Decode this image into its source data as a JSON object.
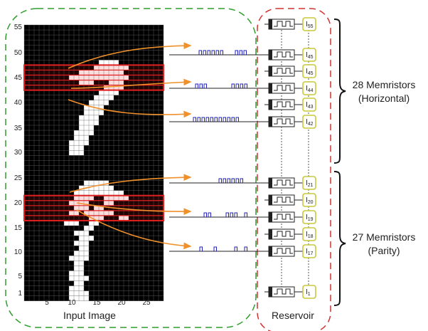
{
  "input_panel": {
    "caption": "Input Image",
    "grid_columns": 28,
    "grid_rows": 55,
    "y_ticks": [
      "55",
      "50",
      "45",
      "40",
      "35",
      "30",
      "25",
      "20",
      "15",
      "10",
      "5",
      "1"
    ],
    "x_ticks": [
      "5",
      "10",
      "15",
      "20",
      "25"
    ],
    "panel_border_color": "#2e9e2e"
  },
  "reservoir": {
    "caption": "Reservoir",
    "border_color": "#d43030",
    "current_box_color": "#c8c83c",
    "top_devices": [
      {
        "label": "I",
        "sub": "55"
      },
      {
        "label": "I",
        "sub": "45"
      },
      {
        "label": "I",
        "sub": "45"
      },
      {
        "label": "I",
        "sub": "44"
      },
      {
        "label": "I",
        "sub": "43"
      },
      {
        "label": "I",
        "sub": "42"
      }
    ],
    "bottom_devices": [
      {
        "label": "I",
        "sub": "21"
      },
      {
        "label": "I",
        "sub": "20"
      },
      {
        "label": "I",
        "sub": "19"
      },
      {
        "label": "I",
        "sub": "18"
      },
      {
        "label": "I",
        "sub": "17"
      },
      {
        "label": "I",
        "sub": "1"
      }
    ]
  },
  "groups": [
    {
      "line1": "28 Memristors",
      "line2": "(Horizontal)"
    },
    {
      "line1": "27 Memristors",
      "line2": "(Parity)"
    }
  ],
  "colors": {
    "arrow": "#f0902a",
    "highlight": "#e02020",
    "pulse": "#2020c0"
  }
}
